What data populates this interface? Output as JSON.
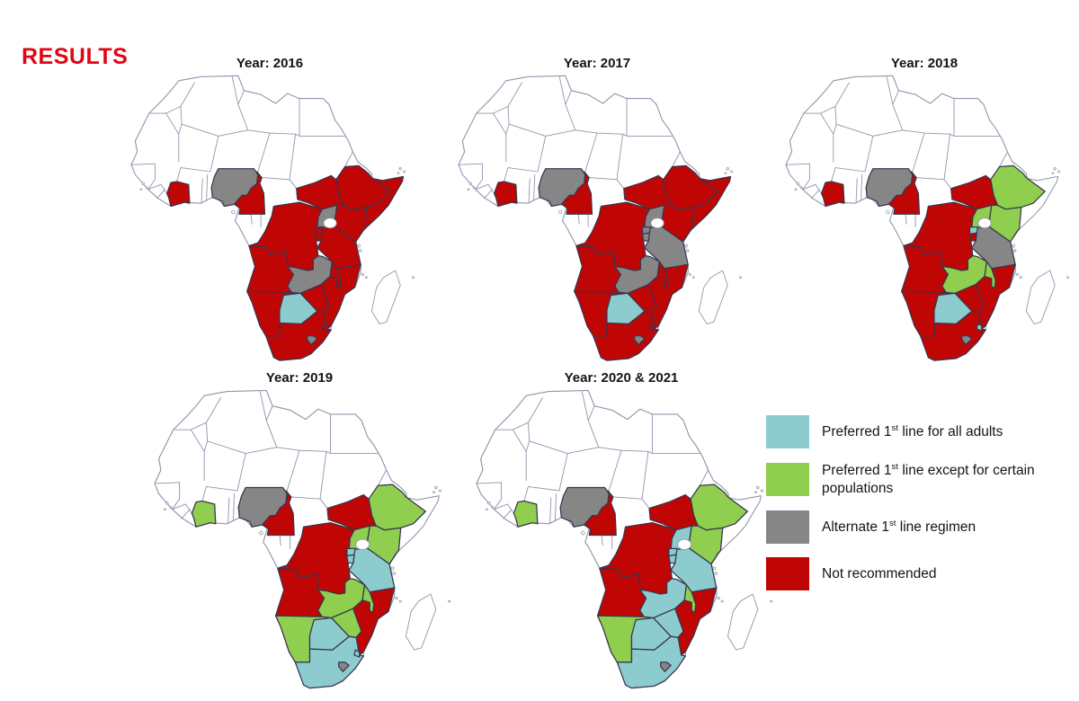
{
  "page": {
    "title": "RESULTS"
  },
  "status_colors": {
    "preferred_all": "#8CCCCE",
    "preferred_except": "#8FCE4E",
    "alternate": "#868686",
    "not_recommended": "#C00505",
    "none": "#FFFFFF"
  },
  "legend": {
    "items": [
      {
        "status": "preferred_all",
        "pre": "Preferred 1",
        "sup": "st",
        "post": " line for all adults"
      },
      {
        "status": "preferred_except",
        "pre": "Preferred 1",
        "sup": "st",
        "post": " line except for certain populations"
      },
      {
        "status": "alternate",
        "pre": "Alternate 1",
        "sup": "st",
        "post": " line regimen"
      },
      {
        "status": "not_recommended",
        "pre": "Not recommended",
        "sup": "",
        "post": ""
      }
    ]
  },
  "chart_data": {
    "type": "choropleth_map",
    "region": "Africa",
    "title": "RESULTS",
    "legend_position": "bottom-right",
    "categories": [
      "Preferred 1st line for all adults",
      "Preferred 1st line except for certain populations",
      "Alternate 1st line regimen",
      "Not recommended"
    ],
    "years": [
      {
        "title": "Year: 2016",
        "statuses": {
          "cote_divoire": "not_recommended",
          "nigeria": "alternate",
          "cameroon": "not_recommended",
          "ethiopia": "not_recommended",
          "somalia": "not_recommended",
          "kenya": "not_recommended",
          "south_sudan": "not_recommended",
          "uganda": "alternate",
          "rwanda": "not_recommended",
          "burundi": "not_recommended",
          "tanzania": "not_recommended",
          "drc": "not_recommended",
          "angola": "not_recommended",
          "zambia": "alternate",
          "malawi": "not_recommended",
          "mozambique": "not_recommended",
          "zimbabwe": "not_recommended",
          "botswana": "preferred_all",
          "namibia": "not_recommended",
          "south_africa": "not_recommended",
          "lesotho": "alternate",
          "eswatini": "not_recommended"
        }
      },
      {
        "title": "Year: 2017",
        "statuses": {
          "cote_divoire": "not_recommended",
          "nigeria": "alternate",
          "cameroon": "not_recommended",
          "ethiopia": "not_recommended",
          "somalia": "not_recommended",
          "kenya": "not_recommended",
          "south_sudan": "not_recommended",
          "uganda": "alternate",
          "rwanda": "alternate",
          "burundi": "alternate",
          "tanzania": "alternate",
          "drc": "not_recommended",
          "angola": "not_recommended",
          "zambia": "alternate",
          "malawi": "not_recommended",
          "mozambique": "not_recommended",
          "zimbabwe": "not_recommended",
          "botswana": "preferred_all",
          "namibia": "not_recommended",
          "south_africa": "not_recommended",
          "lesotho": "alternate",
          "eswatini": "not_recommended"
        }
      },
      {
        "title": "Year: 2018",
        "statuses": {
          "cote_divoire": "not_recommended",
          "nigeria": "alternate",
          "cameroon": "not_recommended",
          "ethiopia": "preferred_except",
          "somalia": "none",
          "kenya": "preferred_except",
          "south_sudan": "not_recommended",
          "uganda": "preferred_except",
          "rwanda": "preferred_all",
          "burundi": "not_recommended",
          "tanzania": "alternate",
          "drc": "not_recommended",
          "angola": "not_recommended",
          "zambia": "preferred_except",
          "malawi": "preferred_except",
          "mozambique": "not_recommended",
          "zimbabwe": "not_recommended",
          "botswana": "preferred_all",
          "namibia": "not_recommended",
          "south_africa": "not_recommended",
          "lesotho": "alternate",
          "eswatini": "preferred_all"
        }
      },
      {
        "title": "Year: 2019",
        "statuses": {
          "cote_divoire": "preferred_except",
          "nigeria": "alternate",
          "cameroon": "not_recommended",
          "ethiopia": "preferred_except",
          "somalia": "none",
          "kenya": "preferred_except",
          "south_sudan": "not_recommended",
          "uganda": "preferred_except",
          "rwanda": "preferred_all",
          "burundi": "preferred_all",
          "tanzania": "preferred_all",
          "drc": "not_recommended",
          "angola": "not_recommended",
          "zambia": "preferred_except",
          "malawi": "preferred_except",
          "mozambique": "not_recommended",
          "zimbabwe": "preferred_except",
          "botswana": "preferred_all",
          "namibia": "preferred_except",
          "south_africa": "preferred_all",
          "lesotho": "alternate",
          "eswatini": "preferred_all"
        }
      },
      {
        "title": "Year: 2020 & 2021",
        "statuses": {
          "cote_divoire": "preferred_except",
          "nigeria": "alternate",
          "cameroon": "not_recommended",
          "ethiopia": "preferred_except",
          "somalia": "none",
          "kenya": "preferred_except",
          "south_sudan": "not_recommended",
          "uganda": "preferred_all",
          "rwanda": "preferred_all",
          "burundi": "preferred_all",
          "tanzania": "preferred_all",
          "drc": "not_recommended",
          "angola": "not_recommended",
          "zambia": "preferred_all",
          "malawi": "preferred_except",
          "mozambique": "not_recommended",
          "zimbabwe": "preferred_all",
          "botswana": "preferred_all",
          "namibia": "preferred_except",
          "south_africa": "preferred_all",
          "lesotho": "alternate",
          "eswatini": "none"
        }
      }
    ]
  }
}
